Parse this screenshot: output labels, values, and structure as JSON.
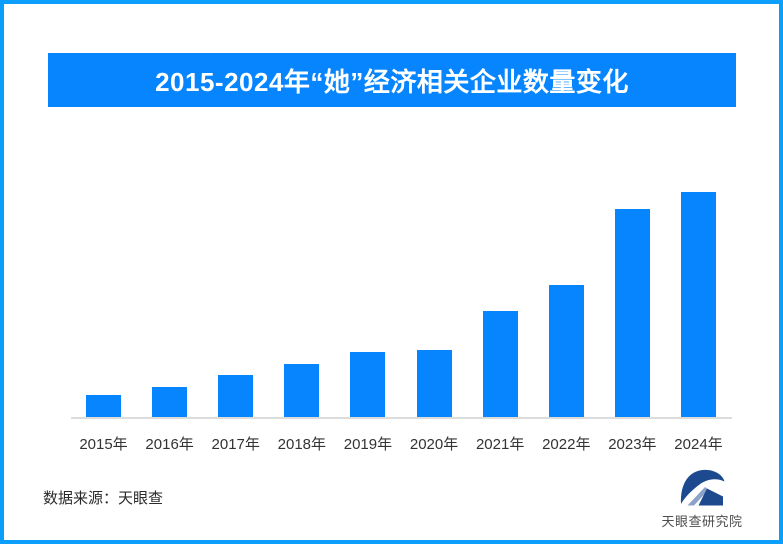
{
  "page": {
    "border_color": "#0B9EFA",
    "background": "#FFFFFF"
  },
  "banner": {
    "title": "2015-2024年“她”经济相关企业数量变化",
    "background": "#0685FF",
    "text_color": "#FFFFFF"
  },
  "chart_data": {
    "type": "bar",
    "title": "2015-2024年“她”经济相关企业数量变化",
    "categories": [
      "2015年",
      "2016年",
      "2017年",
      "2018年",
      "2019年",
      "2020年",
      "2021年",
      "2022年",
      "2023年",
      "2024年"
    ],
    "values": [
      22,
      30,
      42,
      53,
      65,
      67,
      106,
      132,
      208,
      225
    ],
    "xlabel": "",
    "ylabel": "",
    "ylim": [
      0,
      239
    ],
    "value_axis_visible": false,
    "data_labels_visible": false,
    "grid": false,
    "legend": false,
    "bar_color": "#0685FF",
    "axis_line_color": "#DCDCDC",
    "tick_label_color": "#333333"
  },
  "footer": {
    "source": "数据来源：天眼查",
    "logo_text": "天眼查研究院",
    "logo_dark_color": "#1D4A8E",
    "logo_light_color": "#8BA3C6"
  }
}
